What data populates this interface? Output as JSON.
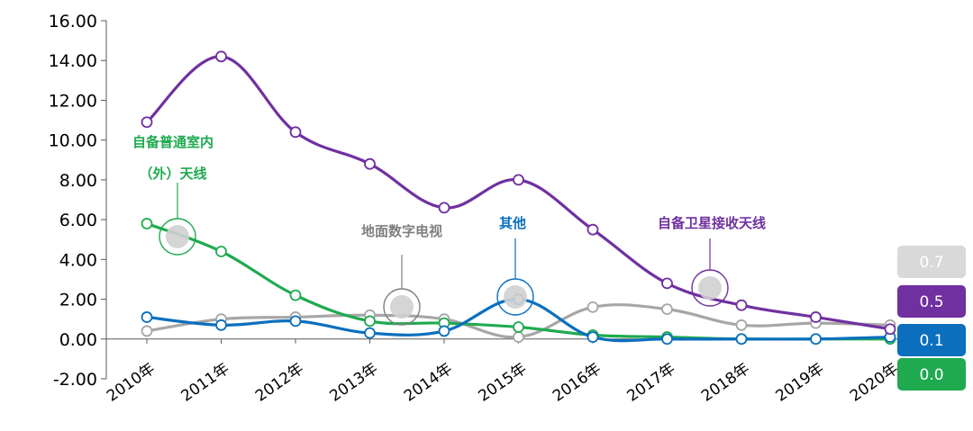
{
  "chart_data": {
    "type": "line",
    "title": "",
    "xlabel": "",
    "ylabel": "",
    "ylim": [
      -2,
      16
    ],
    "yticks": [
      "16.00",
      "14.00",
      "12.00",
      "10.00",
      "8.00",
      "6.00",
      "4.00",
      "2.00",
      "0.00",
      "-2.00"
    ],
    "ytick_values": [
      16,
      14,
      12,
      10,
      8,
      6,
      4,
      2,
      0,
      -2
    ],
    "categories": [
      "2010年",
      "2011年",
      "2012年",
      "2013年",
      "2014年",
      "2015年",
      "2016年",
      "2017年",
      "2018年",
      "2019年",
      "2020年"
    ],
    "grid": false,
    "series": [
      {
        "name": "自备卫星接收天线",
        "color": "#7030a0",
        "values": [
          10.9,
          14.2,
          10.4,
          8.8,
          6.6,
          8.0,
          5.5,
          2.8,
          1.7,
          1.1,
          0.5
        ]
      },
      {
        "name": "自备普通室内(外)天线",
        "color": "#1faa4f",
        "values": [
          5.8,
          4.4,
          2.2,
          0.9,
          0.8,
          0.6,
          0.2,
          0.1,
          0.0,
          0.0,
          0.0
        ]
      },
      {
        "name": "地面数字电视",
        "color": "#a6a6a6",
        "values": [
          0.4,
          1.0,
          1.1,
          1.2,
          1.0,
          0.1,
          1.6,
          1.5,
          0.7,
          0.8,
          0.7
        ]
      },
      {
        "name": "其他",
        "color": "#0b6fbe",
        "values": [
          1.1,
          0.7,
          0.9,
          0.3,
          0.4,
          2.0,
          0.1,
          0.0,
          0.0,
          0.0,
          0.1
        ]
      }
    ],
    "annotations": [
      {
        "lines": [
          "自备普通室内",
          "（外）天线"
        ],
        "color": "#1faa4f"
      },
      {
        "lines": [
          "地面数字电视"
        ],
        "color": "#7f7f7f"
      },
      {
        "lines": [
          "其他"
        ],
        "color": "#0b6fbe"
      },
      {
        "lines": [
          "自备卫星接收天线"
        ],
        "color": "#7030a0"
      }
    ],
    "end_labels": [
      {
        "text": "0.7",
        "color": "#d9d9d9"
      },
      {
        "text": "0.5",
        "color": "#7030a0"
      },
      {
        "text": "0.1",
        "color": "#0b6fbe"
      },
      {
        "text": "0.0",
        "color": "#1faa4f"
      }
    ]
  }
}
